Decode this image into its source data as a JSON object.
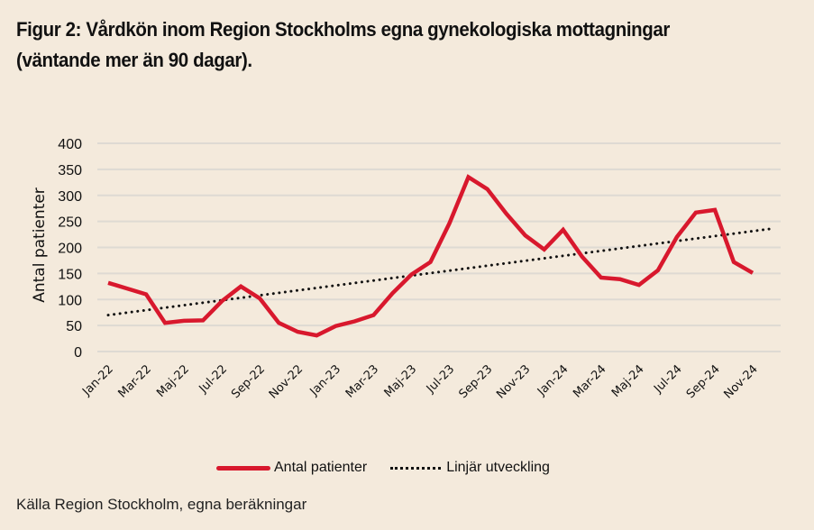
{
  "title": "Figur 2: Vårdkön inom Region Stockholms egna gynekologiska mottagningar (väntande mer än 90 dagar).",
  "source": "Källa Region Stockholm, egna beräkningar",
  "colors": {
    "background": "#f4eadc",
    "series_main": "#d8182d",
    "trend": "#111111",
    "grid": "#dedad3"
  },
  "chart_data": {
    "type": "line",
    "title": "Figur 2: Vårdkön inom Region Stockholms egna gynekologiska mottagningar (väntande mer än 90 dagar).",
    "xlabel": "",
    "ylabel": "Antal patienter",
    "ylim": [
      0,
      400
    ],
    "yticks": [
      0,
      50,
      100,
      150,
      200,
      250,
      300,
      350,
      400
    ],
    "grid": true,
    "legend_position": "bottom",
    "x": [
      "Jan-22",
      "Feb-22",
      "Mar-22",
      "Apr-22",
      "Maj-22",
      "Jun-22",
      "Jul-22",
      "Aug-22",
      "Sep-22",
      "Okt-22",
      "Nov-22",
      "Dec-22",
      "Jan-23",
      "Feb-23",
      "Mar-23",
      "Apr-23",
      "Maj-23",
      "Jun-23",
      "Jul-23",
      "Aug-23",
      "Sep-23",
      "Okt-23",
      "Nov-23",
      "Dec-23",
      "Jan-24",
      "Feb-24",
      "Mar-24",
      "Apr-24",
      "Maj-24",
      "Jun-24",
      "Jul-24",
      "Aug-24",
      "Sep-24",
      "Okt-24",
      "Nov-24"
    ],
    "xtick_labels": [
      "Jan-22",
      "Mar-22",
      "Maj-22",
      "Jul-22",
      "Sep-22",
      "Nov-22",
      "Jan-23",
      "Mar-23",
      "Maj-23",
      "Jul-23",
      "Sep-23",
      "Nov-23",
      "Jan-24",
      "Mar-24",
      "Maj-24",
      "Jul-24",
      "Sep-24",
      "Nov-24"
    ],
    "series": [
      {
        "name": "Antal patienter",
        "style": "solid",
        "values": [
          132,
          121,
          110,
          55,
          59,
          60,
          97,
          125,
          102,
          55,
          38,
          31,
          49,
          58,
          70,
          112,
          148,
          172,
          246,
          335,
          312,
          265,
          223,
          196,
          234,
          182,
          142,
          139,
          128,
          156,
          220,
          267,
          272,
          172,
          151
        ]
      },
      {
        "name": "Linjär utveckling",
        "style": "dotted",
        "start_index": 0,
        "end_index": 35,
        "start_value": 70,
        "end_value": 236
      }
    ]
  },
  "legend": [
    {
      "label": "Antal patienter"
    },
    {
      "label": "Linjär utveckling"
    }
  ]
}
